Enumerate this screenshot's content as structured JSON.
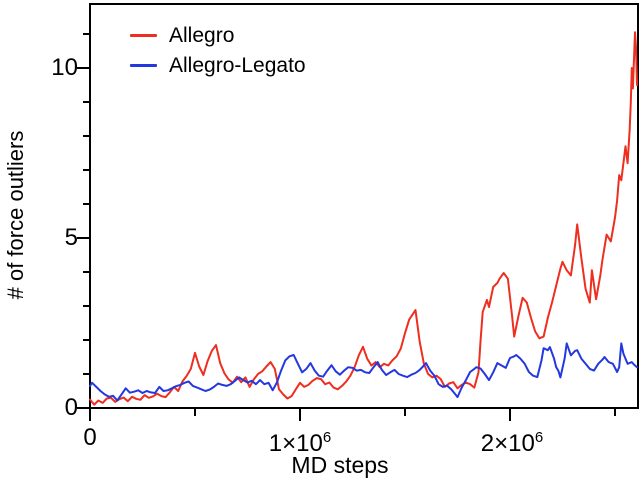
{
  "figure": {
    "background": "#ffffff",
    "axis_color": "#000000",
    "legend": [
      {
        "label": "Allegro",
        "color": "#ee2e1f"
      },
      {
        "label": "Allegro-Legato",
        "color": "#2438e0"
      }
    ],
    "x_axis": {
      "title": "MD steps",
      "tick_labels": [
        {
          "base": "0",
          "sup": ""
        },
        {
          "base": "1×10",
          "sup": "6"
        },
        {
          "base": "2×10",
          "sup": "6"
        }
      ]
    },
    "y_axis": {
      "title": "# of force outliers",
      "tick_labels": [
        "0",
        "5",
        "10"
      ]
    }
  },
  "chart_data": {
    "type": "line",
    "title": "",
    "xlabel": "MD steps",
    "ylabel": "# of force outliers",
    "xlim_e6": [
      0,
      2.61
    ],
    "ylim": [
      0,
      11.9
    ],
    "x_units_note": "x values of points are MD steps in millions (1e6)",
    "x_major_ticks_e6": [
      0,
      1,
      2
    ],
    "x_minor_ticks_e6": [
      0.5,
      1.5,
      2.5
    ],
    "y_major_ticks": [
      0,
      5,
      10
    ],
    "y_minor_ticks": [
      1,
      2,
      3,
      4,
      6,
      7,
      8,
      9,
      11
    ],
    "grid": false,
    "legend_position": "top-left",
    "series": [
      {
        "name": "Allegro",
        "color": "#ee2e1f",
        "points": [
          [
            0.0,
            0.25
          ],
          [
            0.02,
            0.1
          ],
          [
            0.04,
            0.22
          ],
          [
            0.06,
            0.15
          ],
          [
            0.08,
            0.28
          ],
          [
            0.1,
            0.3
          ],
          [
            0.12,
            0.18
          ],
          [
            0.14,
            0.26
          ],
          [
            0.16,
            0.31
          ],
          [
            0.18,
            0.2
          ],
          [
            0.2,
            0.33
          ],
          [
            0.22,
            0.27
          ],
          [
            0.24,
            0.24
          ],
          [
            0.26,
            0.38
          ],
          [
            0.28,
            0.3
          ],
          [
            0.3,
            0.34
          ],
          [
            0.32,
            0.42
          ],
          [
            0.34,
            0.35
          ],
          [
            0.36,
            0.32
          ],
          [
            0.38,
            0.46
          ],
          [
            0.4,
            0.62
          ],
          [
            0.42,
            0.5
          ],
          [
            0.44,
            0.78
          ],
          [
            0.46,
            0.94
          ],
          [
            0.48,
            1.15
          ],
          [
            0.5,
            1.62
          ],
          [
            0.52,
            1.22
          ],
          [
            0.54,
            0.97
          ],
          [
            0.56,
            1.38
          ],
          [
            0.58,
            1.68
          ],
          [
            0.6,
            1.85
          ],
          [
            0.62,
            1.32
          ],
          [
            0.64,
            1.02
          ],
          [
            0.66,
            0.84
          ],
          [
            0.68,
            0.74
          ],
          [
            0.7,
            0.92
          ],
          [
            0.72,
            0.76
          ],
          [
            0.74,
            0.9
          ],
          [
            0.76,
            0.62
          ],
          [
            0.78,
            0.84
          ],
          [
            0.8,
            1.0
          ],
          [
            0.82,
            1.08
          ],
          [
            0.84,
            1.22
          ],
          [
            0.86,
            1.35
          ],
          [
            0.88,
            1.15
          ],
          [
            0.9,
            0.55
          ],
          [
            0.92,
            0.4
          ],
          [
            0.94,
            0.28
          ],
          [
            0.96,
            0.35
          ],
          [
            0.98,
            0.55
          ],
          [
            1.0,
            0.74
          ],
          [
            1.02,
            0.62
          ],
          [
            1.04,
            0.68
          ],
          [
            1.06,
            0.8
          ],
          [
            1.08,
            0.88
          ],
          [
            1.1,
            0.85
          ],
          [
            1.12,
            0.7
          ],
          [
            1.14,
            0.75
          ],
          [
            1.16,
            0.6
          ],
          [
            1.18,
            0.55
          ],
          [
            1.2,
            0.65
          ],
          [
            1.22,
            0.78
          ],
          [
            1.24,
            0.95
          ],
          [
            1.26,
            1.2
          ],
          [
            1.28,
            1.55
          ],
          [
            1.3,
            1.8
          ],
          [
            1.32,
            1.45
          ],
          [
            1.34,
            1.25
          ],
          [
            1.36,
            1.35
          ],
          [
            1.38,
            1.2
          ],
          [
            1.4,
            1.3
          ],
          [
            1.42,
            1.25
          ],
          [
            1.44,
            1.4
          ],
          [
            1.46,
            1.52
          ],
          [
            1.48,
            1.75
          ],
          [
            1.5,
            2.2
          ],
          [
            1.52,
            2.6
          ],
          [
            1.55,
            2.88
          ],
          [
            1.57,
            1.95
          ],
          [
            1.59,
            1.3
          ],
          [
            1.61,
            1.0
          ],
          [
            1.63,
            0.9
          ],
          [
            1.65,
            0.95
          ],
          [
            1.67,
            0.85
          ],
          [
            1.69,
            0.62
          ],
          [
            1.71,
            0.72
          ],
          [
            1.73,
            0.76
          ],
          [
            1.75,
            0.58
          ],
          [
            1.77,
            0.68
          ],
          [
            1.79,
            0.75
          ],
          [
            1.81,
            0.7
          ],
          [
            1.83,
            0.6
          ],
          [
            1.85,
            1.05
          ],
          [
            1.86,
            2.0
          ],
          [
            1.87,
            2.82
          ],
          [
            1.89,
            3.18
          ],
          [
            1.9,
            2.97
          ],
          [
            1.92,
            3.56
          ],
          [
            1.94,
            3.68
          ],
          [
            1.95,
            3.8
          ],
          [
            1.97,
            3.97
          ],
          [
            1.99,
            3.8
          ],
          [
            2.01,
            2.7
          ],
          [
            2.02,
            2.1
          ],
          [
            2.04,
            2.7
          ],
          [
            2.06,
            3.24
          ],
          [
            2.08,
            3.1
          ],
          [
            2.1,
            2.65
          ],
          [
            2.12,
            2.25
          ],
          [
            2.14,
            2.05
          ],
          [
            2.16,
            2.1
          ],
          [
            2.18,
            2.65
          ],
          [
            2.2,
            3.1
          ],
          [
            2.22,
            3.6
          ],
          [
            2.24,
            4.1
          ],
          [
            2.25,
            4.3
          ],
          [
            2.27,
            4.05
          ],
          [
            2.29,
            3.9
          ],
          [
            2.31,
            4.8
          ],
          [
            2.32,
            5.4
          ],
          [
            2.34,
            4.4
          ],
          [
            2.36,
            3.5
          ],
          [
            2.38,
            3.1
          ],
          [
            2.39,
            4.05
          ],
          [
            2.41,
            3.2
          ],
          [
            2.43,
            3.9
          ],
          [
            2.44,
            4.35
          ],
          [
            2.46,
            5.1
          ],
          [
            2.48,
            4.9
          ],
          [
            2.5,
            5.6
          ],
          [
            2.51,
            6.1
          ],
          [
            2.52,
            6.85
          ],
          [
            2.53,
            6.7
          ],
          [
            2.55,
            7.7
          ],
          [
            2.56,
            7.2
          ],
          [
            2.57,
            8.2
          ],
          [
            2.575,
            9.0
          ],
          [
            2.58,
            10.0
          ],
          [
            2.585,
            9.4
          ],
          [
            2.59,
            10.2
          ],
          [
            2.595,
            11.05
          ],
          [
            2.6,
            10.6
          ],
          [
            2.605,
            9.5
          ]
        ]
      },
      {
        "name": "Allegro-Legato",
        "color": "#2438e0",
        "points": [
          [
            0.0,
            0.65
          ],
          [
            0.01,
            0.74
          ],
          [
            0.03,
            0.62
          ],
          [
            0.05,
            0.5
          ],
          [
            0.07,
            0.4
          ],
          [
            0.09,
            0.33
          ],
          [
            0.11,
            0.36
          ],
          [
            0.13,
            0.22
          ],
          [
            0.15,
            0.4
          ],
          [
            0.17,
            0.58
          ],
          [
            0.19,
            0.45
          ],
          [
            0.21,
            0.48
          ],
          [
            0.23,
            0.52
          ],
          [
            0.25,
            0.44
          ],
          [
            0.27,
            0.5
          ],
          [
            0.29,
            0.46
          ],
          [
            0.31,
            0.44
          ],
          [
            0.33,
            0.62
          ],
          [
            0.35,
            0.5
          ],
          [
            0.37,
            0.52
          ],
          [
            0.39,
            0.58
          ],
          [
            0.41,
            0.64
          ],
          [
            0.43,
            0.68
          ],
          [
            0.45,
            0.74
          ],
          [
            0.47,
            0.78
          ],
          [
            0.49,
            0.65
          ],
          [
            0.51,
            0.6
          ],
          [
            0.53,
            0.55
          ],
          [
            0.55,
            0.5
          ],
          [
            0.57,
            0.54
          ],
          [
            0.59,
            0.62
          ],
          [
            0.61,
            0.72
          ],
          [
            0.63,
            0.68
          ],
          [
            0.65,
            0.65
          ],
          [
            0.67,
            0.7
          ],
          [
            0.69,
            0.8
          ],
          [
            0.71,
            0.9
          ],
          [
            0.73,
            0.82
          ],
          [
            0.75,
            0.75
          ],
          [
            0.77,
            0.8
          ],
          [
            0.79,
            0.7
          ],
          [
            0.81,
            0.82
          ],
          [
            0.83,
            0.7
          ],
          [
            0.85,
            0.74
          ],
          [
            0.87,
            0.52
          ],
          [
            0.89,
            0.75
          ],
          [
            0.91,
            1.1
          ],
          [
            0.93,
            1.4
          ],
          [
            0.95,
            1.52
          ],
          [
            0.97,
            1.56
          ],
          [
            0.99,
            1.3
          ],
          [
            1.01,
            1.05
          ],
          [
            1.03,
            1.15
          ],
          [
            1.05,
            1.32
          ],
          [
            1.07,
            1.1
          ],
          [
            1.09,
            0.95
          ],
          [
            1.11,
            0.92
          ],
          [
            1.13,
            1.1
          ],
          [
            1.15,
            1.26
          ],
          [
            1.17,
            1.08
          ],
          [
            1.19,
            0.98
          ],
          [
            1.21,
            1.1
          ],
          [
            1.23,
            1.2
          ],
          [
            1.25,
            1.18
          ],
          [
            1.27,
            1.1
          ],
          [
            1.29,
            1.12
          ],
          [
            1.31,
            1.05
          ],
          [
            1.33,
            1.03
          ],
          [
            1.35,
            1.2
          ],
          [
            1.37,
            1.35
          ],
          [
            1.39,
            1.12
          ],
          [
            1.41,
            0.97
          ],
          [
            1.43,
            1.05
          ],
          [
            1.45,
            1.12
          ],
          [
            1.47,
            1.0
          ],
          [
            1.49,
            0.95
          ],
          [
            1.51,
            0.91
          ],
          [
            1.53,
            0.98
          ],
          [
            1.55,
            1.03
          ],
          [
            1.57,
            1.12
          ],
          [
            1.59,
            1.25
          ],
          [
            1.6,
            1.32
          ],
          [
            1.62,
            1.1
          ],
          [
            1.64,
            0.95
          ],
          [
            1.66,
            0.7
          ],
          [
            1.68,
            0.62
          ],
          [
            1.7,
            0.66
          ],
          [
            1.72,
            0.55
          ],
          [
            1.74,
            0.4
          ],
          [
            1.75,
            0.32
          ],
          [
            1.77,
            0.6
          ],
          [
            1.79,
            0.82
          ],
          [
            1.81,
            1.06
          ],
          [
            1.83,
            1.15
          ],
          [
            1.84,
            1.2
          ],
          [
            1.86,
            1.16
          ],
          [
            1.88,
            1.0
          ],
          [
            1.9,
            0.82
          ],
          [
            1.92,
            1.05
          ],
          [
            1.94,
            1.32
          ],
          [
            1.96,
            1.25
          ],
          [
            1.98,
            1.18
          ],
          [
            2.0,
            1.47
          ],
          [
            2.02,
            1.52
          ],
          [
            2.03,
            1.56
          ],
          [
            2.05,
            1.45
          ],
          [
            2.07,
            1.3
          ],
          [
            2.09,
            1.06
          ],
          [
            2.11,
            0.95
          ],
          [
            2.13,
            0.91
          ],
          [
            2.15,
            1.4
          ],
          [
            2.16,
            1.76
          ],
          [
            2.18,
            1.7
          ],
          [
            2.19,
            1.79
          ],
          [
            2.21,
            1.45
          ],
          [
            2.22,
            1.2
          ],
          [
            2.23,
            1.1
          ],
          [
            2.24,
            0.9
          ],
          [
            2.26,
            1.45
          ],
          [
            2.27,
            1.9
          ],
          [
            2.29,
            1.55
          ],
          [
            2.31,
            1.68
          ],
          [
            2.32,
            1.7
          ],
          [
            2.34,
            1.45
          ],
          [
            2.36,
            1.3
          ],
          [
            2.38,
            1.15
          ],
          [
            2.4,
            1.1
          ],
          [
            2.42,
            1.3
          ],
          [
            2.44,
            1.42
          ],
          [
            2.45,
            1.5
          ],
          [
            2.47,
            1.35
          ],
          [
            2.49,
            1.3
          ],
          [
            2.51,
            1.06
          ],
          [
            2.52,
            1.2
          ],
          [
            2.53,
            1.9
          ],
          [
            2.54,
            1.6
          ],
          [
            2.56,
            1.3
          ],
          [
            2.58,
            1.35
          ],
          [
            2.59,
            1.28
          ],
          [
            2.605,
            1.2
          ]
        ]
      }
    ]
  }
}
